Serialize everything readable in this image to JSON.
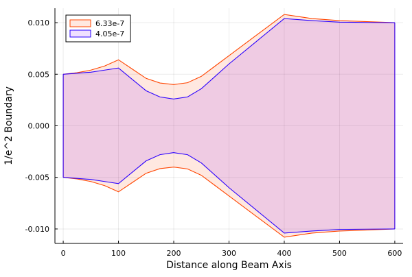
{
  "chart_data": {
    "type": "area",
    "title": "",
    "xlabel": "Distance along Beam Axis",
    "ylabel": "1/e^2 Boundary",
    "xlim": [
      -15,
      615
    ],
    "ylim": [
      -0.0114,
      0.0114
    ],
    "x_ticks": [
      0,
      100,
      200,
      300,
      400,
      500,
      600
    ],
    "x_tick_labels": [
      "0",
      "100",
      "200",
      "300",
      "400",
      "500",
      "600"
    ],
    "y_ticks": [
      -0.01,
      -0.005,
      0.0,
      0.005,
      0.01
    ],
    "y_tick_labels": [
      "-0.010",
      "-0.005",
      "0.000",
      "0.005",
      "0.010"
    ],
    "grid": true,
    "legend_position": "top-left",
    "series": [
      {
        "name": "6.33e-7",
        "line_color": "#ff4500",
        "fill_color": "#ff4500",
        "fill_opacity": 0.12,
        "x": [
          0,
          25,
          50,
          75,
          100,
          125,
          150,
          175,
          200,
          225,
          250,
          275,
          300,
          350,
          400,
          450,
          500,
          550,
          600
        ],
        "upper": [
          0.005,
          0.00515,
          0.0054,
          0.0058,
          0.0064,
          0.0055,
          0.0046,
          0.00415,
          0.004,
          0.00418,
          0.0048,
          0.0058,
          0.0068,
          0.0088,
          0.0108,
          0.0104,
          0.0102,
          0.0101,
          0.01
        ],
        "lower": [
          -0.005,
          -0.00515,
          -0.0054,
          -0.0058,
          -0.0064,
          -0.0055,
          -0.0046,
          -0.00415,
          -0.004,
          -0.00418,
          -0.0048,
          -0.0058,
          -0.0068,
          -0.0088,
          -0.0108,
          -0.0104,
          -0.0102,
          -0.0101,
          -0.01
        ]
      },
      {
        "name": "4.05e-7",
        "line_color": "#2a00ff",
        "fill_color": "#7a00ff",
        "fill_opacity": 0.12,
        "x": [
          0,
          25,
          50,
          75,
          100,
          125,
          150,
          175,
          200,
          225,
          250,
          275,
          300,
          350,
          400,
          450,
          500,
          550,
          600
        ],
        "upper": [
          0.005,
          0.0051,
          0.0052,
          0.0054,
          0.0056,
          0.0045,
          0.0034,
          0.0028,
          0.0026,
          0.0028,
          0.0036,
          0.0048,
          0.006,
          0.0082,
          0.0104,
          0.0102,
          0.01005,
          0.01002,
          0.01
        ],
        "lower": [
          -0.005,
          -0.0051,
          -0.0052,
          -0.0054,
          -0.0056,
          -0.0045,
          -0.0034,
          -0.0028,
          -0.0026,
          -0.0028,
          -0.0036,
          -0.0048,
          -0.006,
          -0.0082,
          -0.0104,
          -0.0102,
          -0.01005,
          -0.01002,
          -0.01
        ]
      }
    ]
  }
}
